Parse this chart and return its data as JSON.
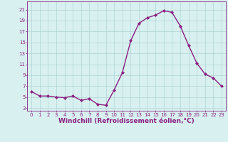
{
  "x": [
    0,
    1,
    2,
    3,
    4,
    5,
    6,
    7,
    8,
    9,
    10,
    11,
    12,
    13,
    14,
    15,
    16,
    17,
    18,
    19,
    20,
    21,
    22,
    23
  ],
  "y": [
    6.0,
    5.2,
    5.2,
    5.0,
    4.9,
    5.2,
    4.4,
    4.7,
    3.7,
    3.5,
    6.3,
    9.5,
    15.3,
    18.5,
    19.5,
    20.0,
    20.8,
    20.5,
    18.0,
    14.5,
    11.2,
    9.2,
    8.5,
    7.0
  ],
  "line_color": "#8B2080",
  "marker": "D",
  "marker_size": 2.0,
  "bg_color": "#d8f0f0",
  "grid_color": "#b0d4d4",
  "xlabel": "Windchill (Refroidissement éolien,°C)",
  "xlabel_fontsize": 6.5,
  "yticks": [
    3,
    5,
    7,
    9,
    11,
    13,
    15,
    17,
    19,
    21
  ],
  "xticks": [
    0,
    1,
    2,
    3,
    4,
    5,
    6,
    7,
    8,
    9,
    10,
    11,
    12,
    13,
    14,
    15,
    16,
    17,
    18,
    19,
    20,
    21,
    22,
    23
  ],
  "ylim": [
    2.5,
    22.5
  ],
  "xlim": [
    -0.5,
    23.5
  ],
  "tick_color": "#8B2080",
  "tick_fontsize": 5.0,
  "linewidth": 1.0
}
